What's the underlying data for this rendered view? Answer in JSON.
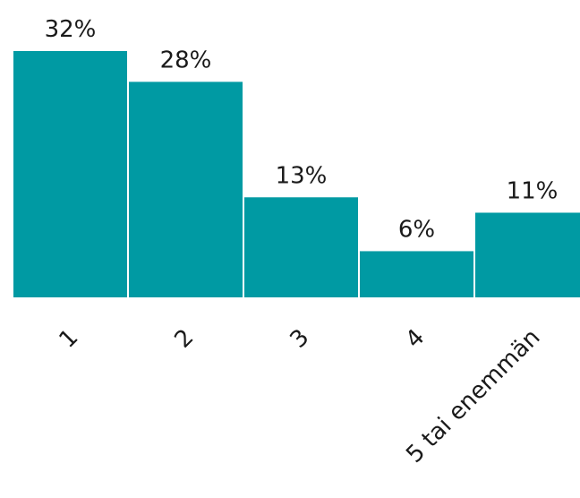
{
  "chart_data": {
    "type": "bar",
    "categories": [
      "1",
      "2",
      "3",
      "4",
      "5 tai enemmän"
    ],
    "values": [
      32,
      28,
      13,
      6,
      11
    ],
    "value_labels": [
      "32%",
      "28%",
      "13%",
      "6%",
      "11%"
    ],
    "ylim": [
      0,
      32
    ],
    "grid": false,
    "legend": "none",
    "bar_color": "#009aa3"
  }
}
